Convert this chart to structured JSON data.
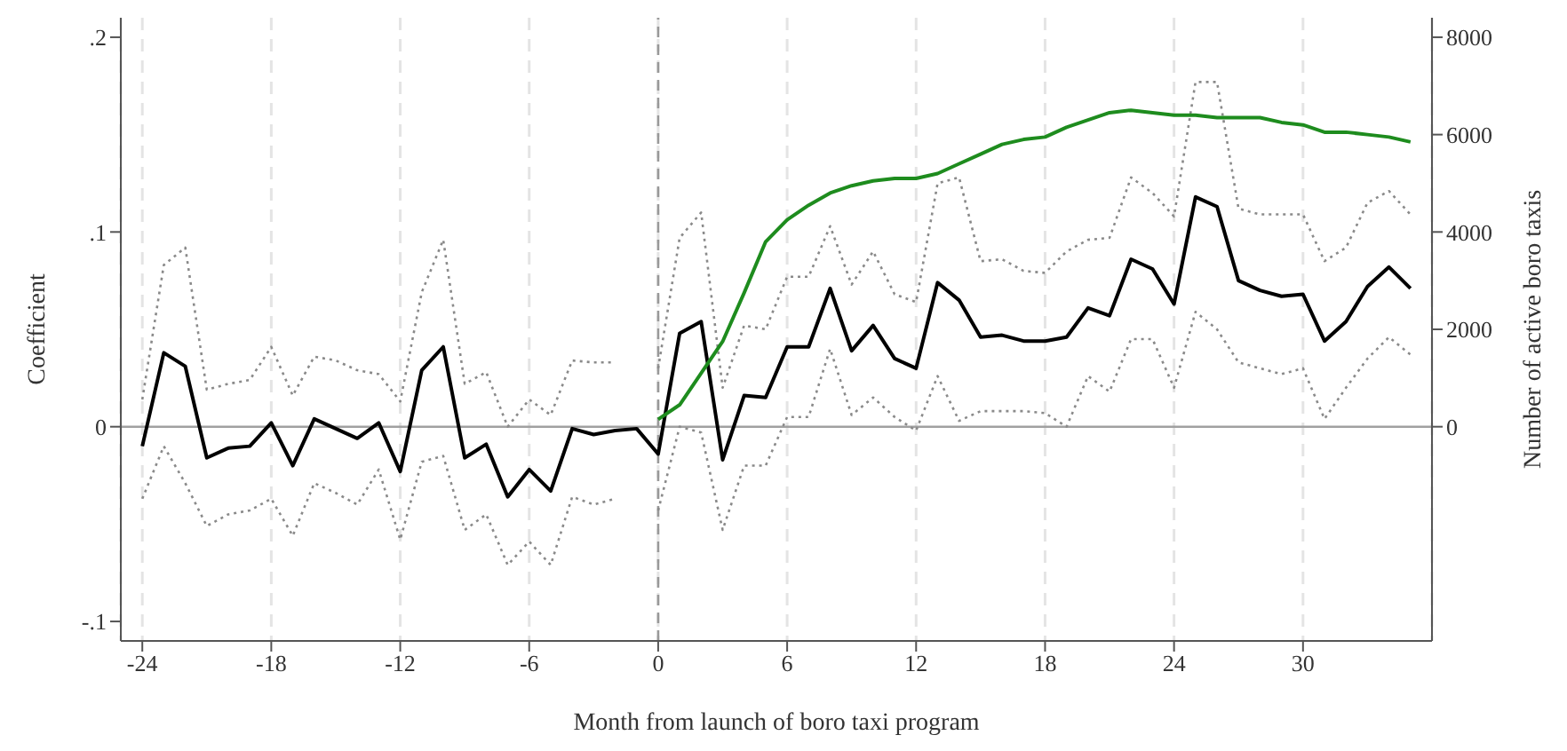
{
  "chart_data": {
    "type": "line",
    "xlabel": "Month from launch of boro taxi program",
    "ylabel": "Coefficient",
    "y2label": "Number of active boro taxis",
    "x": [
      -24,
      -23,
      -22,
      -21,
      -20,
      -19,
      -18,
      -17,
      -16,
      -15,
      -14,
      -13,
      -12,
      -11,
      -10,
      -9,
      -8,
      -7,
      -6,
      -5,
      -4,
      -3,
      -2,
      -1,
      0,
      1,
      2,
      3,
      4,
      5,
      6,
      7,
      8,
      9,
      10,
      11,
      12,
      13,
      14,
      15,
      16,
      17,
      18,
      19,
      20,
      21,
      22,
      23,
      24,
      25,
      26,
      27,
      28,
      29,
      30,
      31,
      32,
      33,
      34,
      35
    ],
    "series": [
      {
        "color": "#000000",
        "values": [
          -0.01,
          0.038,
          0.031,
          -0.016,
          -0.011,
          -0.01,
          0.002,
          -0.02,
          0.004,
          -0.001,
          -0.006,
          0.002,
          -0.023,
          0.029,
          0.041,
          -0.016,
          -0.009,
          -0.036,
          -0.022,
          -0.033,
          -0.001,
          -0.004,
          -0.002,
          -0.001,
          -0.014,
          0.048,
          0.054,
          -0.017,
          0.016,
          0.015,
          0.041,
          0.041,
          0.071,
          0.039,
          0.052,
          0.035,
          0.03,
          0.074,
          0.065,
          0.046,
          0.047,
          0.044,
          0.044,
          0.046,
          0.061,
          0.057,
          0.086,
          0.081,
          0.063,
          0.118,
          0.113,
          0.075,
          0.07,
          0.067,
          0.068,
          0.044,
          0.054,
          0.072,
          0.082,
          0.071
        ]
      },
      {
        "color": "#8a8a8a",
        "line_style": "dotted",
        "values": [
          0.014,
          0.083,
          0.092,
          0.019,
          0.022,
          0.024,
          0.041,
          0.016,
          0.036,
          0.034,
          0.029,
          0.027,
          0.013,
          0.069,
          0.096,
          0.022,
          0.028,
          0.0,
          0.014,
          0.006,
          0.034,
          0.033,
          0.033,
          null,
          0.03,
          0.097,
          0.11,
          0.02,
          0.052,
          0.05,
          0.077,
          0.077,
          0.103,
          0.073,
          0.09,
          0.068,
          0.064,
          0.125,
          0.128,
          0.085,
          0.086,
          0.08,
          0.079,
          0.09,
          0.096,
          0.097,
          0.128,
          0.12,
          0.108,
          0.177,
          0.177,
          0.112,
          0.109,
          0.109,
          0.109,
          0.085,
          0.092,
          0.115,
          0.121,
          0.109
        ]
      },
      {
        "color": "#8a8a8a",
        "line_style": "dotted",
        "values": [
          -0.037,
          -0.01,
          -0.029,
          -0.051,
          -0.045,
          -0.043,
          -0.037,
          -0.056,
          -0.029,
          -0.034,
          -0.04,
          -0.022,
          -0.058,
          -0.018,
          -0.015,
          -0.053,
          -0.045,
          -0.071,
          -0.059,
          -0.071,
          -0.036,
          -0.04,
          -0.037,
          null,
          -0.043,
          0.0,
          -0.003,
          -0.053,
          -0.02,
          -0.02,
          0.005,
          0.005,
          0.04,
          0.006,
          0.015,
          0.005,
          -0.002,
          0.026,
          0.003,
          0.008,
          0.008,
          0.008,
          0.007,
          0.0,
          0.026,
          0.018,
          0.045,
          0.045,
          0.02,
          0.059,
          0.05,
          0.033,
          0.03,
          0.027,
          0.03,
          0.004,
          0.02,
          0.035,
          0.046,
          0.037
        ]
      },
      {
        "color": "#1e8c1e",
        "axis": "y2",
        "x": [
          0,
          1,
          2,
          3,
          4,
          5,
          6,
          7,
          8,
          9,
          10,
          11,
          12,
          13,
          14,
          15,
          16,
          17,
          18,
          19,
          20,
          21,
          22,
          23,
          24,
          25,
          26,
          27,
          28,
          29,
          30,
          31,
          32,
          33,
          34,
          35
        ],
        "values": [
          150,
          450,
          1100,
          1750,
          2750,
          3800,
          4250,
          4550,
          4800,
          4950,
          5050,
          5100,
          5100,
          5200,
          5400,
          5600,
          5800,
          5900,
          5950,
          6150,
          6300,
          6450,
          6500,
          6450,
          6400,
          6400,
          6350,
          6350,
          6350,
          6250,
          6200,
          6050,
          6050,
          6000,
          5950,
          5850
        ]
      }
    ],
    "xlim": [
      -25,
      36
    ],
    "xticks": [
      -24,
      -18,
      -12,
      -6,
      0,
      6,
      12,
      18,
      24,
      30
    ],
    "ylim": [
      -0.11,
      0.21
    ],
    "yticks": [
      {
        "value": 0.2,
        "label": ".2"
      },
      {
        "value": 0.1,
        "label": ".1"
      },
      0,
      {
        "value": -0.1,
        "label": "-.1"
      }
    ],
    "y2lim": [
      -4400,
      8400
    ],
    "y2ticks": [
      0,
      2000,
      4000,
      6000,
      8000
    ],
    "ref_lines": [
      {
        "axis": "x",
        "value": 0,
        "color": "#999999",
        "line_style": "dashed"
      },
      {
        "axis": "y",
        "value": 0,
        "color": "#a0a0a0",
        "line_style": "solid"
      }
    ],
    "grid": "x",
    "legend": false,
    "marker": "none",
    "line_style": "solid"
  }
}
